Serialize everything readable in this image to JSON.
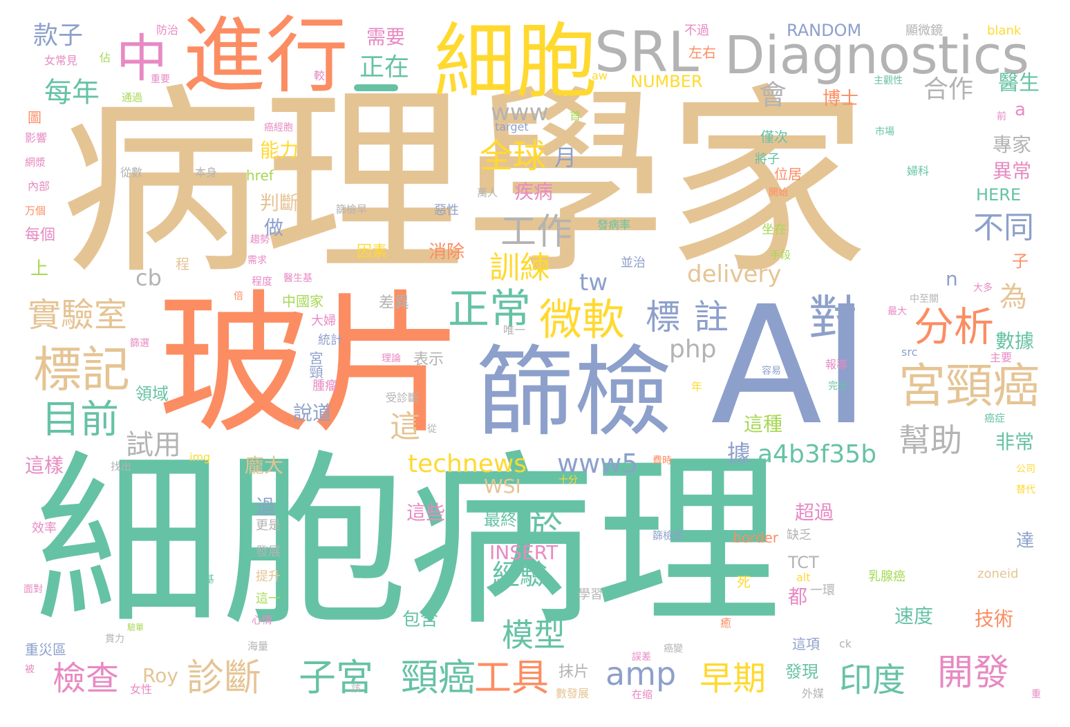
{
  "palette": {
    "green": "#66c2a5",
    "orange": "#fc8d62",
    "blue": "#8da0cb",
    "pink": "#e78ac3",
    "lime": "#a6d854",
    "yellow": "#ffd92f",
    "tan": "#e5c494",
    "gray": "#b3b3b3"
  },
  "words": {
    "w01": "病理學家",
    "w02": "細胞病理",
    "w03": "玻片",
    "w04": "AI",
    "w05": "篩檢",
    "w06": "細胞",
    "w07": "進行",
    "w08": "SRL",
    "w09": "Diagnostics",
    "w10": "中",
    "w11": "宮頸癌",
    "w12": "實驗室",
    "w13": "標記",
    "w14": "目前",
    "w15": "微軟",
    "w16": "正常",
    "w17": "對",
    "w18": "分析",
    "w19": "標",
    "w20": "註",
    "w21": "全球",
    "w22": "工作",
    "w23": "訓練",
    "w24": "每年",
    "w25": "款子",
    "w26": "正在",
    "w27": "需要",
    "w28": "合作",
    "w29": "醫生",
    "w30": "會",
    "w31": "www",
    "w32": "delivery",
    "w33": "cb",
    "w34": "tw",
    "w35": "php",
    "w36": "technews",
    "w37": "www5",
    "w38": "a4b3f35b",
    "w39": "amp",
    "w40": "檢查",
    "w41": "診斷",
    "w42": "子宮",
    "w43": "頸癌",
    "w44": "工具",
    "w45": "早期",
    "w46": "印度",
    "w47": "開發",
    "w48": "於",
    "w49": "經驗",
    "w50": "模型",
    "w51": "幫助",
    "w52": "不同",
    "w53": "為",
    "w54": "專家",
    "w55": "異常",
    "w56": "數據",
    "w57": "非常",
    "w58": "這",
    "w59": "這種",
    "w60": "據",
    "w61": "試用",
    "w62": "能力",
    "w63": "月",
    "w64": "判斷",
    "w65": "疾病",
    "w66": "做",
    "w67": "RANDOM",
    "w68": "NUMBER",
    "w69": "INSERT",
    "w70": "HERE",
    "w71": "Roy",
    "w72": "WSI",
    "w73": "TCT",
    "w74": "超過",
    "w75": "這些",
    "w76": "最終",
    "w77": "過",
    "w78": "龐大",
    "w79": "更是",
    "w80": "發展",
    "w81": "提升",
    "w82": "這一",
    "w83": "心情",
    "w84": "海量",
    "w85": "說道",
    "w86": "宮頸",
    "w87": "腫瘤",
    "w88": "表示",
    "w89": "領域",
    "w90": "統計",
    "w91": "大婦",
    "w92": "中國家",
    "w93": "差異",
    "w94": "因素",
    "w95": "消除",
    "w96": "惡性",
    "w97": "萬人",
    "w98": "篩檢早",
    "w99": "從數",
    "w100": "本身",
    "w101": "href",
    "w102": "target",
    "w103": "大",
    "w104": "首",
    "w105": "aw",
    "w106": "博士",
    "w107": "較",
    "w108": "防治",
    "w109": "佔",
    "w110": "女常見",
    "w111": "重要",
    "w112": "通過",
    "w113": "圖",
    "w114": "影響",
    "w115": "網漿",
    "w116": "內部",
    "w117": "万個",
    "w118": "每個",
    "w119": "上",
    "w120": "程",
    "w121": "a",
    "w122": "n",
    "w123": "子",
    "w124": "都",
    "w125": "包含",
    "w126": "這樣",
    "w127": "效率",
    "w128": "面對",
    "w129": "重災區",
    "w130": "被",
    "w131": "女性",
    "w132": "數發展",
    "w133": "在缩",
    "w134": "抹片",
    "w135": "學習",
    "w136": "死",
    "w137": "一環",
    "w138": "缺乏",
    "w139": "border",
    "w140": "alt",
    "w141": "zoneid",
    "w142": "ck",
    "w143": "技術",
    "w144": "速度",
    "w145": "這項",
    "w146": "發現",
    "w147": "外媒",
    "w148": "達",
    "w149": "乳腺癌",
    "w150": "不過",
    "w151": "左右",
    "w152": "顯微鏡",
    "w153": "blank",
    "w154": "主觀性",
    "w155": "前",
    "w156": "市場",
    "w157": "僅次",
    "w158": "將子",
    "w159": "位居",
    "w160": "婦科",
    "w161": "開始",
    "w162": "坐在",
    "w163": "手段",
    "w164": "並治",
    "w165": "發病率",
    "w166": "癌經胞",
    "w167": "需求",
    "w168": "趨勢",
    "w169": "程度",
    "w170": "醫生基",
    "w171": "倍",
    "w172": "篩選",
    "w173": "理論",
    "w174": "受診斷",
    "w175": "唯一",
    "w176": "容易",
    "w177": "年",
    "w178": "完全",
    "w179": "報導",
    "w180": "src",
    "w181": "主要",
    "w182": "癌症",
    "w183": "公司",
    "w184": "替代",
    "w185": "中至關",
    "w186": "最大",
    "w187": "大多",
    "w188": "img",
    "w189": "找出",
    "w190": "十分",
    "w191": "費時",
    "w192": "篩檢是",
    "w193": "癒",
    "w194": "癌變",
    "w195": "誤差",
    "w196": "該",
    "w197": "貫力",
    "w198": "基",
    "w199": "重",
    "w200": "從",
    "w201": "驗單"
  }
}
